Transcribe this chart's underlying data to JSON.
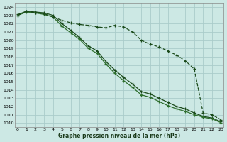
{
  "xlabel": "Graphe pression niveau de la mer (hPa)",
  "ylim": [
    1009.5,
    1024.5
  ],
  "xlim": [
    -0.3,
    23.3
  ],
  "yticks": [
    1010,
    1011,
    1012,
    1013,
    1014,
    1015,
    1016,
    1017,
    1018,
    1019,
    1020,
    1021,
    1022,
    1023,
    1024
  ],
  "xticks": [
    0,
    1,
    2,
    3,
    4,
    5,
    6,
    7,
    8,
    9,
    10,
    11,
    12,
    13,
    14,
    15,
    16,
    17,
    18,
    19,
    20,
    21,
    22,
    23
  ],
  "bg_color": "#cce8e4",
  "grid_color": "#aaccca",
  "line_color_dark": "#1a4a1a",
  "line_color_mid": "#2d6e2d",
  "series_dashed_y": [
    1023.0,
    1023.5,
    1023.3,
    1023.2,
    1022.8,
    1022.4,
    1022.1,
    1021.9,
    1021.8,
    1021.6,
    1021.5,
    1021.8,
    1021.6,
    1021.0,
    1020.0,
    1019.5,
    1019.2,
    1018.7,
    1018.2,
    1017.5,
    1016.5,
    1011.2,
    1011.0,
    1010.4
  ],
  "series_solid1_y": [
    1023.1,
    1023.5,
    1023.4,
    1023.3,
    1023.0,
    1022.0,
    1021.2,
    1020.3,
    1019.3,
    1018.7,
    1017.4,
    1016.4,
    1015.5,
    1014.7,
    1013.8,
    1013.5,
    1013.0,
    1012.5,
    1012.0,
    1011.7,
    1011.2,
    1010.8,
    1010.6,
    1010.15
  ],
  "series_solid2_y": [
    1023.0,
    1023.4,
    1023.3,
    1023.1,
    1022.8,
    1021.7,
    1020.9,
    1020.1,
    1019.0,
    1018.4,
    1017.1,
    1016.0,
    1015.1,
    1014.3,
    1013.4,
    1013.1,
    1012.6,
    1012.1,
    1011.7,
    1011.4,
    1011.0,
    1010.7,
    1010.5,
    1010.05
  ]
}
